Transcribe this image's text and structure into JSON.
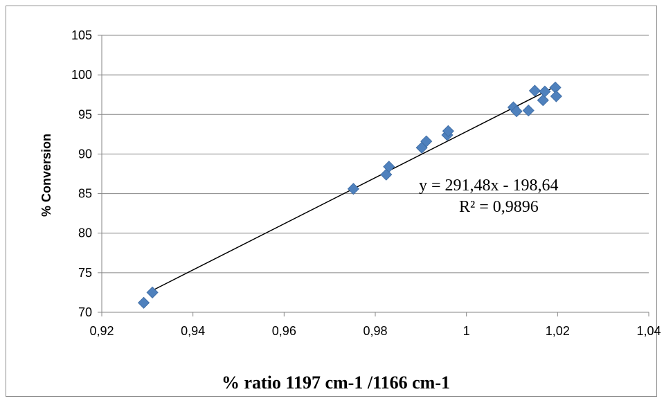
{
  "chart_data": {
    "type": "scatter",
    "xlabel": "% ratio 1197 cm-1 /1166 cm-1",
    "ylabel": "% Conversion",
    "xlim": [
      0.92,
      1.04
    ],
    "ylim": [
      70,
      105
    ],
    "x_ticks": [
      "0,92",
      "0,94",
      "0,96",
      "0,98",
      "1",
      "1,02",
      "1,04"
    ],
    "y_ticks": [
      "70",
      "75",
      "80",
      "85",
      "90",
      "95",
      "100",
      "105"
    ],
    "grid": "horizontal",
    "marker_color": "#4f81bd",
    "trendline": {
      "slope": 291.48,
      "intercept": -198.64,
      "x_range": [
        0.9305,
        1.0195
      ],
      "equation": "y = 291,48x - 198,64",
      "r_squared": "R² = 0,9896"
    },
    "points": [
      {
        "x": 0.9292,
        "y": 71.2
      },
      {
        "x": 0.9311,
        "y": 72.5
      },
      {
        "x": 0.9752,
        "y": 85.6
      },
      {
        "x": 0.9824,
        "y": 87.4
      },
      {
        "x": 0.983,
        "y": 88.4
      },
      {
        "x": 0.9902,
        "y": 90.8
      },
      {
        "x": 0.9912,
        "y": 91.6
      },
      {
        "x": 0.9958,
        "y": 92.4
      },
      {
        "x": 0.996,
        "y": 92.9
      },
      {
        "x": 1.0103,
        "y": 95.9
      },
      {
        "x": 1.011,
        "y": 95.4
      },
      {
        "x": 1.0136,
        "y": 95.5
      },
      {
        "x": 1.015,
        "y": 98.0
      },
      {
        "x": 1.0168,
        "y": 96.8
      },
      {
        "x": 1.0172,
        "y": 97.9
      },
      {
        "x": 1.0195,
        "y": 98.4
      },
      {
        "x": 1.0197,
        "y": 97.3
      }
    ]
  }
}
